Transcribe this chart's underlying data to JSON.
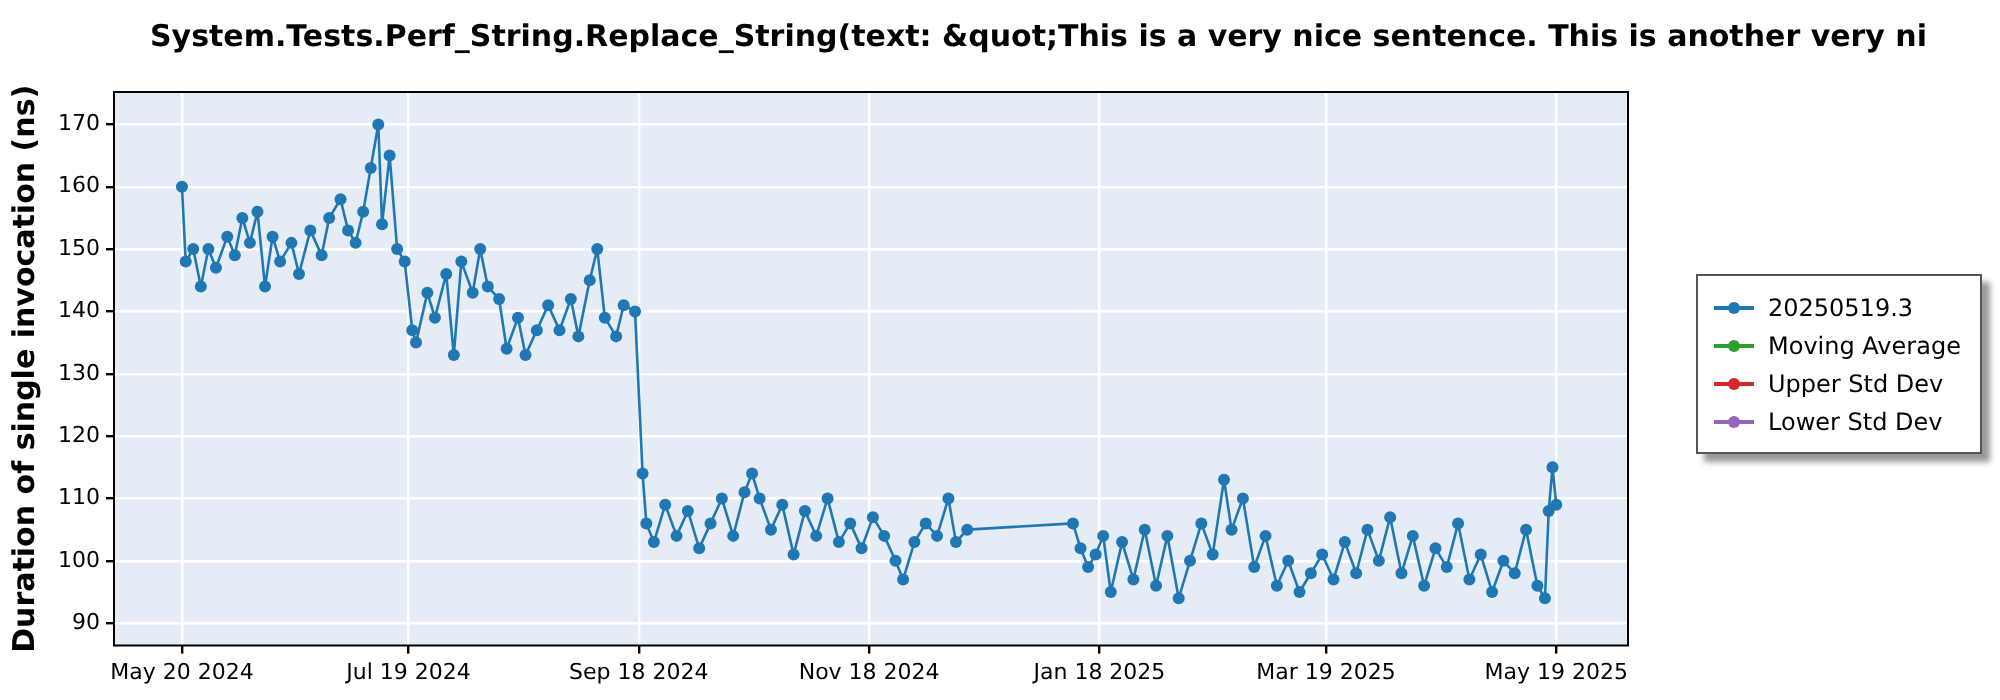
{
  "chart_data": {
    "type": "line",
    "title": "System.Tests.Perf_String.Replace_String(text: &quot;This is a very nice sentence. This is another very ni",
    "ylabel": "Duration of single invocation (ns)",
    "x": [
      "2024-05-20",
      "2024-05-21",
      "2024-05-23",
      "2024-05-25",
      "2024-05-27",
      "2024-05-29",
      "2024-06-01",
      "2024-06-03",
      "2024-06-05",
      "2024-06-07",
      "2024-06-09",
      "2024-06-11",
      "2024-06-13",
      "2024-06-15",
      "2024-06-18",
      "2024-06-20",
      "2024-06-23",
      "2024-06-26",
      "2024-06-28",
      "2024-07-01",
      "2024-07-03",
      "2024-07-05",
      "2024-07-07",
      "2024-07-09",
      "2024-07-11",
      "2024-07-12",
      "2024-07-14",
      "2024-07-16",
      "2024-07-18",
      "2024-07-20",
      "2024-07-21",
      "2024-07-24",
      "2024-07-26",
      "2024-07-29",
      "2024-07-31",
      "2024-08-02",
      "2024-08-05",
      "2024-08-07",
      "2024-08-09",
      "2024-08-12",
      "2024-08-14",
      "2024-08-17",
      "2024-08-19",
      "2024-08-22",
      "2024-08-25",
      "2024-08-28",
      "2024-08-31",
      "2024-09-02",
      "2024-09-05",
      "2024-09-07",
      "2024-09-09",
      "2024-09-12",
      "2024-09-14",
      "2024-09-17",
      "2024-09-19",
      "2024-09-20",
      "2024-09-22",
      "2024-09-25",
      "2024-09-28",
      "2024-10-01",
      "2024-10-04",
      "2024-10-07",
      "2024-10-10",
      "2024-10-13",
      "2024-10-16",
      "2024-10-18",
      "2024-10-20",
      "2024-10-23",
      "2024-10-26",
      "2024-10-29",
      "2024-11-01",
      "2024-11-04",
      "2024-11-07",
      "2024-11-10",
      "2024-11-13",
      "2024-11-16",
      "2024-11-19",
      "2024-11-22",
      "2024-11-25",
      "2024-11-27",
      "2024-11-30",
      "2024-12-03",
      "2024-12-06",
      "2024-12-09",
      "2024-12-11",
      "2024-12-14",
      "2025-01-11",
      "2025-01-13",
      "2025-01-15",
      "2025-01-17",
      "2025-01-19",
      "2025-01-21",
      "2025-01-24",
      "2025-01-27",
      "2025-01-30",
      "2025-02-02",
      "2025-02-05",
      "2025-02-08",
      "2025-02-11",
      "2025-02-14",
      "2025-02-17",
      "2025-02-20",
      "2025-02-22",
      "2025-02-25",
      "2025-02-28",
      "2025-03-03",
      "2025-03-06",
      "2025-03-09",
      "2025-03-12",
      "2025-03-15",
      "2025-03-18",
      "2025-03-21",
      "2025-03-24",
      "2025-03-27",
      "2025-03-30",
      "2025-04-02",
      "2025-04-05",
      "2025-04-08",
      "2025-04-11",
      "2025-04-14",
      "2025-04-17",
      "2025-04-20",
      "2025-04-23",
      "2025-04-26",
      "2025-04-29",
      "2025-05-02",
      "2025-05-05",
      "2025-05-08",
      "2025-05-11",
      "2025-05-14",
      "2025-05-16",
      "2025-05-17",
      "2025-05-18",
      "2025-05-19"
    ],
    "series": [
      {
        "name": "20250519.3",
        "color": "#1f77b4",
        "values": [
          160,
          148,
          150,
          144,
          150,
          147,
          152,
          149,
          155,
          151,
          156,
          144,
          152,
          148,
          151,
          146,
          153,
          149,
          155,
          158,
          153,
          151,
          156,
          163,
          170,
          154,
          165,
          150,
          148,
          137,
          135,
          143,
          139,
          146,
          133,
          148,
          143,
          150,
          144,
          142,
          134,
          139,
          133,
          137,
          141,
          137,
          142,
          136,
          145,
          150,
          139,
          136,
          141,
          140,
          114,
          106,
          103,
          109,
          104,
          108,
          102,
          106,
          110,
          104,
          111,
          114,
          110,
          105,
          109,
          101,
          108,
          104,
          110,
          103,
          106,
          102,
          107,
          104,
          100,
          97,
          103,
          106,
          104,
          110,
          103,
          105,
          106,
          102,
          99,
          101,
          104,
          95,
          103,
          97,
          105,
          96,
          104,
          94,
          100,
          106,
          101,
          113,
          105,
          110,
          99,
          104,
          96,
          100,
          95,
          98,
          101,
          97,
          103,
          98,
          105,
          100,
          107,
          98,
          104,
          96,
          102,
          99,
          106,
          97,
          101,
          95,
          100,
          98,
          105,
          96,
          94,
          108,
          115,
          109
        ]
      },
      {
        "name": "Moving Average",
        "color": "#2ca02c",
        "values": [
          null,
          null,
          null,
          null,
          null,
          null,
          null,
          null,
          null,
          null,
          null,
          null,
          null,
          null,
          null,
          null,
          null,
          null,
          null,
          null,
          null,
          null,
          null,
          null,
          null,
          null,
          null,
          null,
          null,
          null,
          null,
          null,
          null,
          null,
          null,
          null,
          null,
          null,
          null,
          null,
          null,
          null,
          null,
          null,
          null,
          null,
          null,
          null,
          null,
          null,
          null,
          null,
          null,
          null,
          null,
          null,
          null,
          null,
          null,
          null,
          null,
          null,
          null,
          null,
          null,
          null,
          null,
          null,
          null,
          null,
          null,
          null,
          null,
          null,
          null,
          null,
          null,
          null,
          null,
          null,
          null,
          null,
          null,
          null,
          null,
          null,
          null,
          null,
          null,
          null,
          null,
          null,
          null,
          null,
          null,
          null,
          null,
          null,
          null,
          null,
          null,
          null,
          null,
          null,
          null,
          null,
          null,
          null,
          null,
          null,
          null,
          null,
          null,
          null,
          null,
          null,
          null,
          null,
          null,
          null,
          null,
          null,
          null,
          null,
          null,
          null,
          null,
          null,
          null,
          null,
          null,
          null,
          null,
          null
        ]
      },
      {
        "name": "Upper Std Dev",
        "color": "#d62728",
        "values": [
          null,
          null,
          null,
          null,
          null,
          null,
          null,
          null,
          null,
          null,
          null,
          null,
          null,
          null,
          null,
          null,
          null,
          null,
          null,
          null,
          null,
          null,
          null,
          null,
          null,
          null,
          null,
          null,
          null,
          null,
          null,
          null,
          null,
          null,
          null,
          null,
          null,
          null,
          null,
          null,
          null,
          null,
          null,
          null,
          null,
          null,
          null,
          null,
          null,
          null,
          null,
          null,
          null,
          null,
          null,
          null,
          null,
          null,
          null,
          null,
          null,
          null,
          null,
          null,
          null,
          null,
          null,
          null,
          null,
          null,
          null,
          null,
          null,
          null,
          null,
          null,
          null,
          null,
          null,
          null,
          null,
          null,
          null,
          null,
          null,
          null,
          null,
          null,
          null,
          null,
          null,
          null,
          null,
          null,
          null,
          null,
          null,
          null,
          null,
          null,
          null,
          null,
          null,
          null,
          null,
          null,
          null,
          null,
          null,
          null,
          null,
          null,
          null,
          null,
          null,
          null,
          null,
          null,
          null,
          null,
          null,
          null,
          null,
          null,
          null,
          null,
          null,
          null,
          null,
          null,
          null,
          null,
          null,
          null
        ]
      },
      {
        "name": "Lower Std Dev",
        "color": "#9467bd",
        "values": [
          null,
          null,
          null,
          null,
          null,
          null,
          null,
          null,
          null,
          null,
          null,
          null,
          null,
          null,
          null,
          null,
          null,
          null,
          null,
          null,
          null,
          null,
          null,
          null,
          null,
          null,
          null,
          null,
          null,
          null,
          null,
          null,
          null,
          null,
          null,
          null,
          null,
          null,
          null,
          null,
          null,
          null,
          null,
          null,
          null,
          null,
          null,
          null,
          null,
          null,
          null,
          null,
          null,
          null,
          null,
          null,
          null,
          null,
          null,
          null,
          null,
          null,
          null,
          null,
          null,
          null,
          null,
          null,
          null,
          null,
          null,
          null,
          null,
          null,
          null,
          null,
          null,
          null,
          null,
          null,
          null,
          null,
          null,
          null,
          null,
          null,
          null,
          null,
          null,
          null,
          null,
          null,
          null,
          null,
          null,
          null,
          null,
          null,
          null,
          null,
          null,
          null,
          null,
          null,
          null,
          null,
          null,
          null,
          null,
          null,
          null,
          null,
          null,
          null,
          null,
          null,
          null,
          null,
          null,
          null,
          null,
          null,
          null,
          null,
          null,
          null,
          null,
          null,
          null,
          null,
          null,
          null,
          null,
          null
        ]
      }
    ],
    "xlim": [
      "2024-05-02",
      "2025-06-07"
    ],
    "xticks": [
      {
        "value": "2024-05-20",
        "label": "May 20 2024"
      },
      {
        "value": "2024-07-19",
        "label": "Jul 19 2024"
      },
      {
        "value": "2024-09-18",
        "label": "Sep 18 2024"
      },
      {
        "value": "2024-11-18",
        "label": "Nov 18 2024"
      },
      {
        "value": "2025-01-18",
        "label": "Jan 18 2025"
      },
      {
        "value": "2025-03-19",
        "label": "Mar 19 2025"
      },
      {
        "value": "2025-05-19",
        "label": "May 19 2025"
      }
    ],
    "ylim": [
      86.4,
      175.2
    ],
    "yticks": [
      90,
      100,
      110,
      120,
      130,
      140,
      150,
      160,
      170
    ],
    "grid": true,
    "legend": "right",
    "marker": "circle",
    "line_style": "solid"
  }
}
